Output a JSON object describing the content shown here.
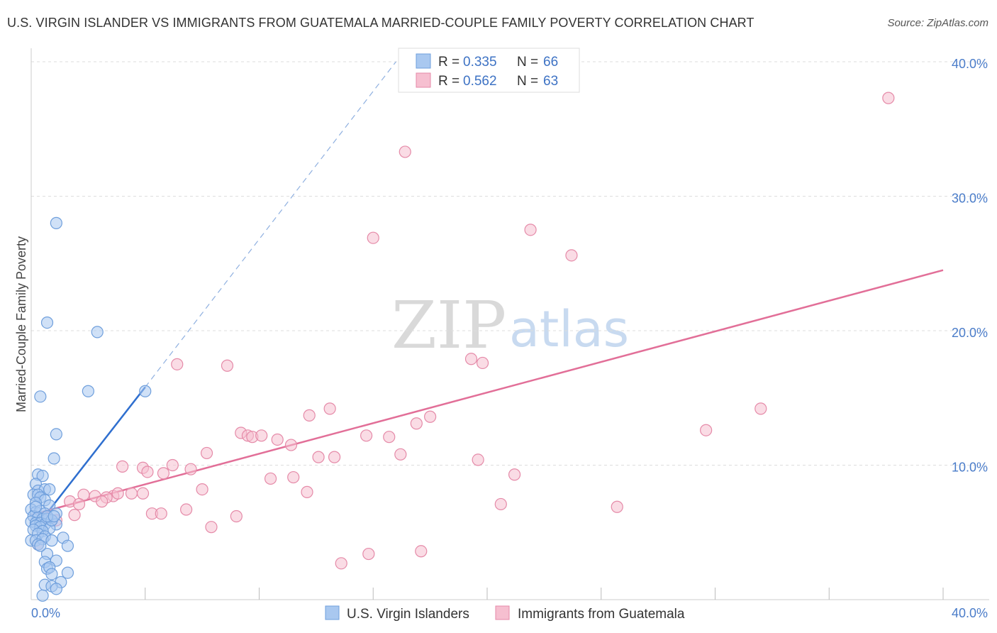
{
  "title": "U.S. VIRGIN ISLANDER VS IMMIGRANTS FROM GUATEMALA MARRIED-COUPLE FAMILY POVERTY CORRELATION CHART",
  "source": "Source: ZipAtlas.com",
  "watermark": {
    "part1": "ZIP",
    "part2": "atlas"
  },
  "colors": {
    "blue_fill": "#a9c8f0",
    "blue_stroke": "#6f9fdc",
    "blue_line": "#2f6fcf",
    "pink_fill": "#f6bfd0",
    "pink_stroke": "#e58aa8",
    "pink_line": "#e26f98",
    "grid": "#dddddd",
    "tick_text": "#4a7cc9"
  },
  "chart_data": {
    "type": "scatter",
    "xlabel": "",
    "ylabel": "Married-Couple Family Poverty",
    "xlim": [
      0,
      40
    ],
    "ylim": [
      0,
      41
    ],
    "x_tick_labels": [
      "0.0%",
      "40.0%"
    ],
    "y_ticks": [
      10,
      20,
      30,
      40
    ],
    "y_tick_labels": [
      "10.0%",
      "20.0%",
      "30.0%",
      "40.0%"
    ],
    "legend": [
      {
        "series": "U.S. Virgin Islanders",
        "r_label": "R =",
        "r_value": "0.335",
        "n_label": "N =",
        "n_value": "66"
      },
      {
        "series": "Immigrants from Guatemala",
        "r_label": "R =",
        "r_value": "0.562",
        "n_label": "N =",
        "n_value": "63"
      }
    ],
    "series": [
      {
        "name": "U.S. Virgin Islanders",
        "color": "#a9c8f0",
        "trend": {
          "x0": 0.4,
          "y0": 5.8,
          "x1": 5.0,
          "y1": 15.8,
          "dash_to_x": 16.0,
          "dash_to_y": 40.0
        },
        "points": [
          [
            1.1,
            28.0
          ],
          [
            0.7,
            20.6
          ],
          [
            2.9,
            19.9
          ],
          [
            2.5,
            15.5
          ],
          [
            5.0,
            15.5
          ],
          [
            0.4,
            15.1
          ],
          [
            1.1,
            12.3
          ],
          [
            1.0,
            10.5
          ],
          [
            0.3,
            9.3
          ],
          [
            0.5,
            9.2
          ],
          [
            0.2,
            8.6
          ],
          [
            0.3,
            8.1
          ],
          [
            0.6,
            8.2
          ],
          [
            0.8,
            8.2
          ],
          [
            0.1,
            7.8
          ],
          [
            0.3,
            7.8
          ],
          [
            0.4,
            7.6
          ],
          [
            0.6,
            7.4
          ],
          [
            0.2,
            7.2
          ],
          [
            0.8,
            7.0
          ],
          [
            0.0,
            6.7
          ],
          [
            0.2,
            6.5
          ],
          [
            0.4,
            6.6
          ],
          [
            0.6,
            6.4
          ],
          [
            1.1,
            6.4
          ],
          [
            0.1,
            6.2
          ],
          [
            0.3,
            6.1
          ],
          [
            0.5,
            6.0
          ],
          [
            0.7,
            6.0
          ],
          [
            0.9,
            5.9
          ],
          [
            0.0,
            5.8
          ],
          [
            0.2,
            5.7
          ],
          [
            0.4,
            5.7
          ],
          [
            0.6,
            5.6
          ],
          [
            1.1,
            5.6
          ],
          [
            0.2,
            5.5
          ],
          [
            0.4,
            5.4
          ],
          [
            0.8,
            5.3
          ],
          [
            0.1,
            5.2
          ],
          [
            0.5,
            5.1
          ],
          [
            0.3,
            4.9
          ],
          [
            0.6,
            4.7
          ],
          [
            1.4,
            4.6
          ],
          [
            0.0,
            4.4
          ],
          [
            0.2,
            4.4
          ],
          [
            0.5,
            4.5
          ],
          [
            0.9,
            4.4
          ],
          [
            0.3,
            4.1
          ],
          [
            1.6,
            4.0
          ],
          [
            0.7,
            3.4
          ],
          [
            1.1,
            2.9
          ],
          [
            0.6,
            2.8
          ],
          [
            0.7,
            2.3
          ],
          [
            0.8,
            2.4
          ],
          [
            1.6,
            2.0
          ],
          [
            0.9,
            1.9
          ],
          [
            1.3,
            1.3
          ],
          [
            0.6,
            1.1
          ],
          [
            0.9,
            1.0
          ],
          [
            1.1,
            0.8
          ],
          [
            0.5,
            0.3
          ],
          [
            0.9,
            5.9
          ],
          [
            0.7,
            6.2
          ],
          [
            0.2,
            6.9
          ],
          [
            0.4,
            4.0
          ],
          [
            1.0,
            6.2
          ]
        ]
      },
      {
        "name": "Immigrants from Guatemala",
        "color": "#f6bfd0",
        "trend": {
          "x0": 0.0,
          "y0": 6.3,
          "x1": 40.0,
          "y1": 24.5
        },
        "points": [
          [
            37.6,
            37.3
          ],
          [
            16.4,
            33.3
          ],
          [
            15.0,
            26.9
          ],
          [
            21.9,
            27.5
          ],
          [
            23.7,
            25.6
          ],
          [
            6.4,
            17.5
          ],
          [
            8.6,
            17.4
          ],
          [
            19.3,
            17.9
          ],
          [
            19.8,
            17.6
          ],
          [
            32.0,
            14.2
          ],
          [
            13.1,
            14.2
          ],
          [
            12.2,
            13.7
          ],
          [
            17.5,
            13.6
          ],
          [
            16.9,
            13.1
          ],
          [
            9.2,
            12.4
          ],
          [
            9.5,
            12.2
          ],
          [
            9.7,
            12.1
          ],
          [
            10.1,
            12.2
          ],
          [
            14.7,
            12.2
          ],
          [
            15.7,
            12.1
          ],
          [
            10.8,
            11.9
          ],
          [
            11.4,
            11.5
          ],
          [
            29.6,
            12.6
          ],
          [
            7.7,
            10.9
          ],
          [
            16.2,
            10.8
          ],
          [
            12.6,
            10.6
          ],
          [
            13.3,
            10.6
          ],
          [
            19.6,
            10.4
          ],
          [
            6.2,
            10.0
          ],
          [
            4.0,
            9.9
          ],
          [
            4.9,
            9.8
          ],
          [
            7.0,
            9.7
          ],
          [
            5.1,
            9.5
          ],
          [
            5.8,
            9.4
          ],
          [
            11.5,
            9.1
          ],
          [
            10.5,
            9.0
          ],
          [
            21.2,
            9.3
          ],
          [
            7.5,
            8.2
          ],
          [
            12.1,
            8.0
          ],
          [
            4.4,
            7.9
          ],
          [
            4.9,
            7.9
          ],
          [
            2.3,
            7.8
          ],
          [
            2.8,
            7.7
          ],
          [
            3.6,
            7.7
          ],
          [
            3.8,
            7.9
          ],
          [
            3.3,
            7.6
          ],
          [
            1.7,
            7.3
          ],
          [
            3.1,
            7.3
          ],
          [
            2.1,
            7.1
          ],
          [
            20.6,
            7.1
          ],
          [
            25.7,
            6.9
          ],
          [
            6.8,
            6.7
          ],
          [
            5.3,
            6.4
          ],
          [
            5.7,
            6.4
          ],
          [
            1.9,
            6.3
          ],
          [
            9.0,
            6.2
          ],
          [
            7.9,
            5.4
          ],
          [
            1.1,
            5.9
          ],
          [
            0.7,
            6.1
          ],
          [
            17.1,
            3.6
          ],
          [
            14.8,
            3.4
          ],
          [
            13.6,
            2.7
          ],
          [
            0.3,
            4.1
          ]
        ]
      }
    ]
  }
}
